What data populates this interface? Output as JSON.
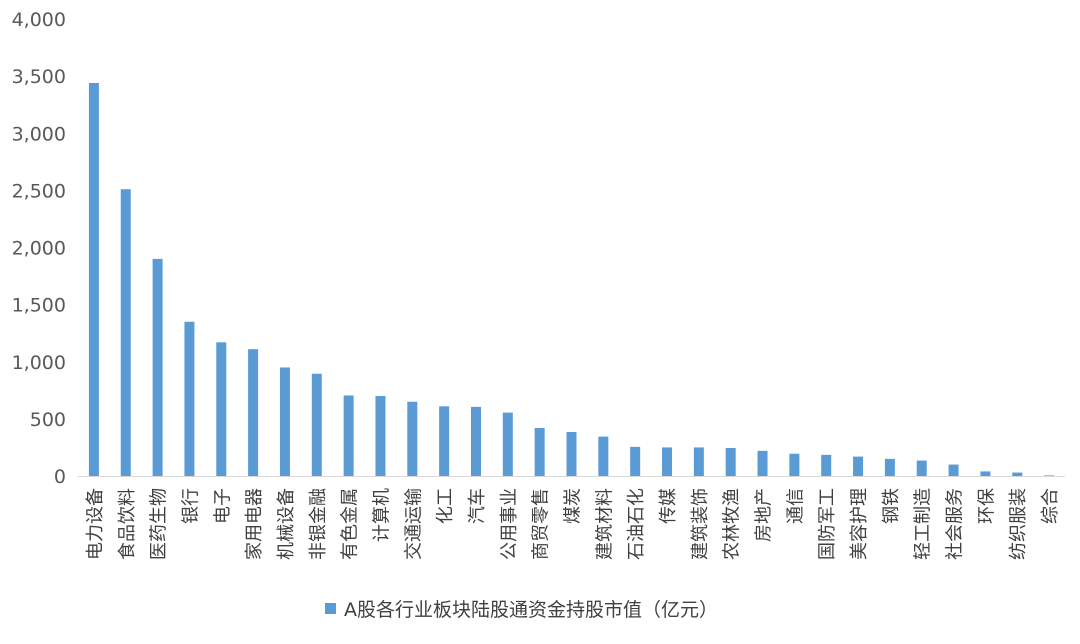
{
  "chart_data": {
    "type": "bar",
    "title": "",
    "xlabel": "",
    "ylabel": "",
    "ylim": [
      0,
      4000
    ],
    "yticks": [
      0,
      500,
      1000,
      1500,
      2000,
      2500,
      3000,
      3500,
      4000
    ],
    "ytick_labels": [
      "0",
      "500",
      "1,000",
      "1,500",
      "2,000",
      "2,500",
      "3,000",
      "3,500",
      "4,000"
    ],
    "grid": false,
    "legend_position": "bottom-center",
    "categories": [
      "电力设备",
      "食品饮料",
      "医药生物",
      "银行",
      "电子",
      "家用电器",
      "机械设备",
      "非银金融",
      "有色金属",
      "计算机",
      "交通运输",
      "化工",
      "汽车",
      "公用事业",
      "商贸零售",
      "煤炭",
      "建筑材料",
      "石油石化",
      "传媒",
      "建筑装饰",
      "农林牧渔",
      "房地产",
      "通信",
      "国防军工",
      "美容护理",
      "钢铁",
      "轻工制造",
      "社会服务",
      "环保",
      "纺织服装",
      "综合"
    ],
    "series": [
      {
        "name": "A股各行业板块陆股通资金持股市值（亿元）",
        "color": "#5B9BD5",
        "values": [
          3440,
          2510,
          1900,
          1350,
          1170,
          1110,
          950,
          895,
          705,
          700,
          650,
          610,
          605,
          555,
          420,
          385,
          345,
          255,
          250,
          250,
          245,
          220,
          195,
          185,
          170,
          150,
          135,
          100,
          40,
          30,
          5
        ]
      }
    ]
  }
}
